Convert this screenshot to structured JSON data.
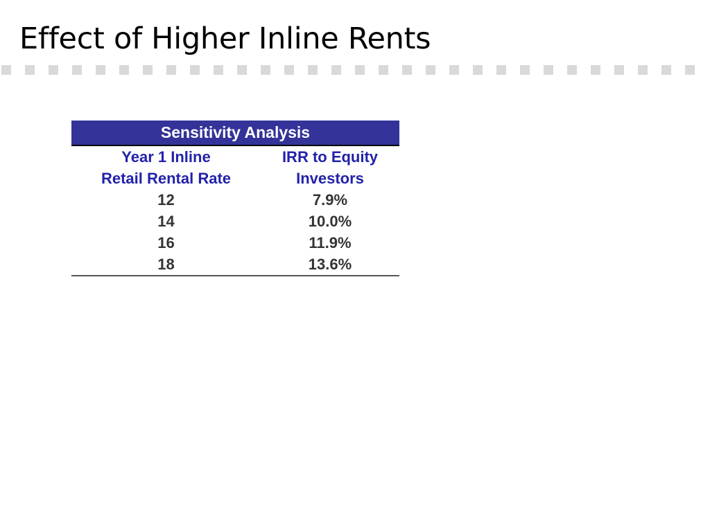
{
  "slide": {
    "title": "Effect of Higher Inline Rents"
  },
  "table": {
    "heading": "Sensitivity Analysis",
    "columns": [
      {
        "line1": "Year 1 Inline",
        "line2": "Retail Rental Rate"
      },
      {
        "line1": "IRR to Equity",
        "line2": "Investors"
      }
    ],
    "rows": [
      {
        "rate": "12",
        "irr": "7.9%"
      },
      {
        "rate": "14",
        "irr": "10.0%"
      },
      {
        "rate": "16",
        "irr": "11.9%"
      },
      {
        "rate": "18",
        "irr": "13.6%"
      }
    ]
  },
  "colors": {
    "header_band": "#333399",
    "header_text": "#ffffff",
    "column_heading_text": "#2222aa",
    "dashes": "#d9d9d9"
  }
}
